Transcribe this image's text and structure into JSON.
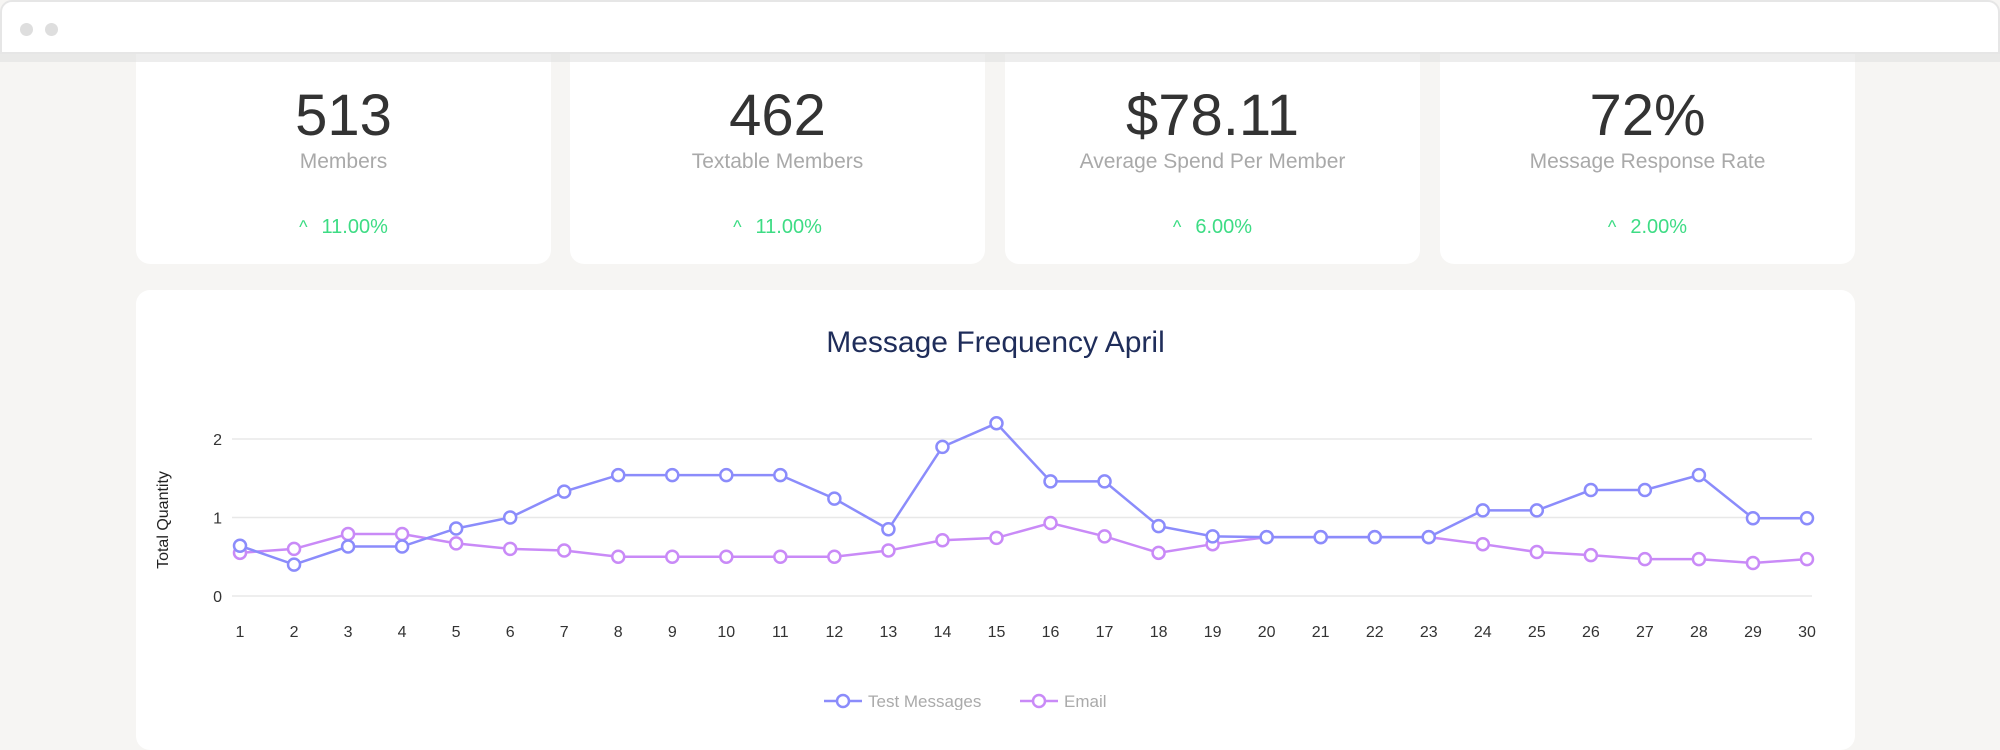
{
  "window": {
    "controls": [
      "close-dot",
      "minimize-dot"
    ]
  },
  "stats": [
    {
      "value": "513",
      "label": "Members",
      "change": "11.00%",
      "direction": "up"
    },
    {
      "value": "462",
      "label": "Textable Members",
      "change": "11.00%",
      "direction": "up"
    },
    {
      "value": "$78.11",
      "label": "Average Spend Per Member",
      "change": "6.00%",
      "direction": "up"
    },
    {
      "value": "72%",
      "label": "Message Response Rate",
      "change": "2.00%",
      "direction": "up"
    }
  ],
  "colors": {
    "positive": "#3ddc84",
    "title": "#1f2d5a",
    "test_messages": "#8b8cfb",
    "email": "#c98af7"
  },
  "chart_data": {
    "type": "line",
    "title": "Message Frequency April",
    "xlabel": "",
    "ylabel": "Total Quantity",
    "ylim": [
      0,
      2.3
    ],
    "yticks": [
      "0",
      "1",
      "2"
    ],
    "grid": true,
    "legend_position": "bottom",
    "x": [
      "1",
      "2",
      "3",
      "4",
      "5",
      "6",
      "7",
      "8",
      "9",
      "10",
      "11",
      "12",
      "13",
      "14",
      "15",
      "16",
      "17",
      "18",
      "19",
      "20",
      "21",
      "22",
      "23",
      "24",
      "25",
      "26",
      "27",
      "28",
      "29",
      "30"
    ],
    "series": [
      {
        "name": "Test Messages",
        "values": [
          0.64,
          0.4,
          0.63,
          0.63,
          0.86,
          1.0,
          1.33,
          1.54,
          1.54,
          1.54,
          1.54,
          1.24,
          0.85,
          1.9,
          2.2,
          1.46,
          1.46,
          0.89,
          0.76,
          0.75,
          0.75,
          0.75,
          0.75,
          1.09,
          1.09,
          1.35,
          1.35,
          1.54,
          0.99,
          0.99
        ]
      },
      {
        "name": "Email",
        "values": [
          0.55,
          0.6,
          0.79,
          0.79,
          0.67,
          0.6,
          0.58,
          0.5,
          0.5,
          0.5,
          0.5,
          0.5,
          0.58,
          0.71,
          0.74,
          0.93,
          0.76,
          0.55,
          0.66,
          0.75,
          0.75,
          0.75,
          0.75,
          0.66,
          0.56,
          0.52,
          0.47,
          0.47,
          0.42,
          0.47
        ]
      }
    ]
  }
}
